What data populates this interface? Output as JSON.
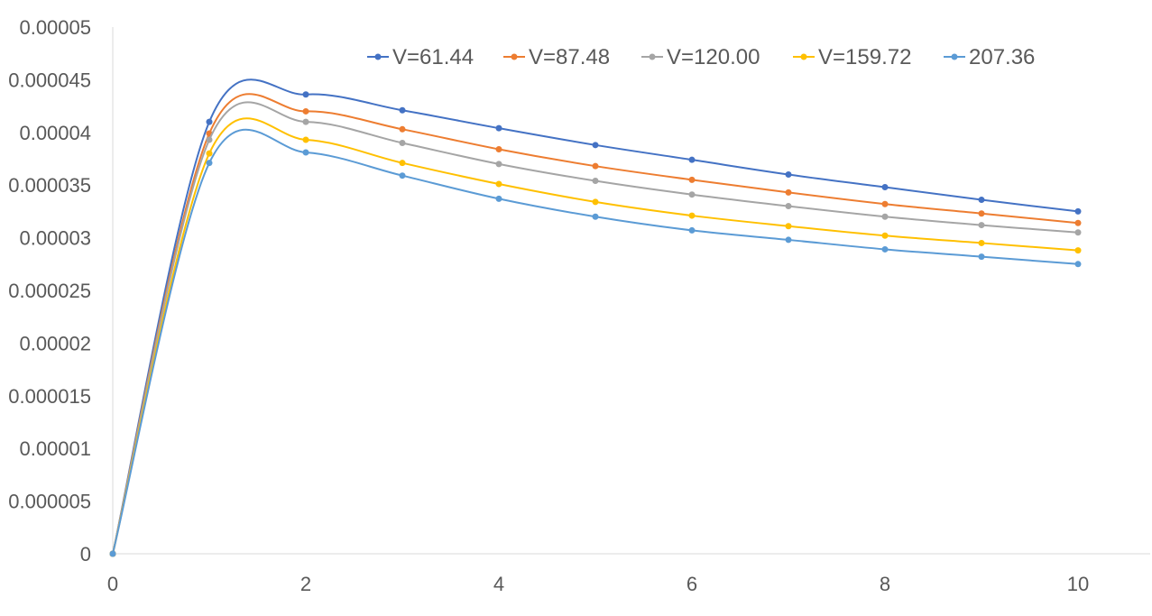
{
  "chart_data": {
    "type": "line",
    "title": "",
    "xlabel": "",
    "ylabel": "",
    "xlim": [
      0,
      10
    ],
    "ylim": [
      0,
      5e-05
    ],
    "x_ticks": [
      "0",
      "2",
      "4",
      "6",
      "8",
      "10"
    ],
    "y_ticks": [
      "0",
      "0.000005",
      "0.00001",
      "0.000015",
      "0.00002",
      "0.000025",
      "0.00003",
      "0.000035",
      "0.00004",
      "0.000045",
      "0.00005"
    ],
    "grid": false,
    "legend_position": "top",
    "x": [
      0,
      1,
      2,
      3,
      4,
      5,
      6,
      7,
      8,
      9,
      10
    ],
    "series": [
      {
        "name": "V=61.44",
        "color": "#4472C4",
        "values": [
          0,
          4.1e-05,
          4.36e-05,
          4.21e-05,
          4.04e-05,
          3.88e-05,
          3.74e-05,
          3.6e-05,
          3.48e-05,
          3.36e-05,
          3.25e-05
        ]
      },
      {
        "name": "V=87.48",
        "color": "#ED7D31",
        "values": [
          0,
          3.99e-05,
          4.2e-05,
          4.03e-05,
          3.84e-05,
          3.68e-05,
          3.55e-05,
          3.43e-05,
          3.32e-05,
          3.23e-05,
          3.14e-05
        ]
      },
      {
        "name": "V=120.00",
        "color": "#A5A5A5",
        "values": [
          0,
          3.93e-05,
          4.1e-05,
          3.9e-05,
          3.7e-05,
          3.54e-05,
          3.41e-05,
          3.3e-05,
          3.2e-05,
          3.12e-05,
          3.05e-05
        ]
      },
      {
        "name": "V=159.72",
        "color": "#FFC000",
        "values": [
          0,
          3.8e-05,
          3.93e-05,
          3.71e-05,
          3.51e-05,
          3.34e-05,
          3.21e-05,
          3.11e-05,
          3.02e-05,
          2.95e-05,
          2.88e-05
        ]
      },
      {
        "name": "207.36",
        "color": "#5B9BD5",
        "values": [
          0,
          3.71e-05,
          3.81e-05,
          3.59e-05,
          3.37e-05,
          3.2e-05,
          3.07e-05,
          2.98e-05,
          2.89e-05,
          2.82e-05,
          2.75e-05
        ]
      }
    ]
  }
}
